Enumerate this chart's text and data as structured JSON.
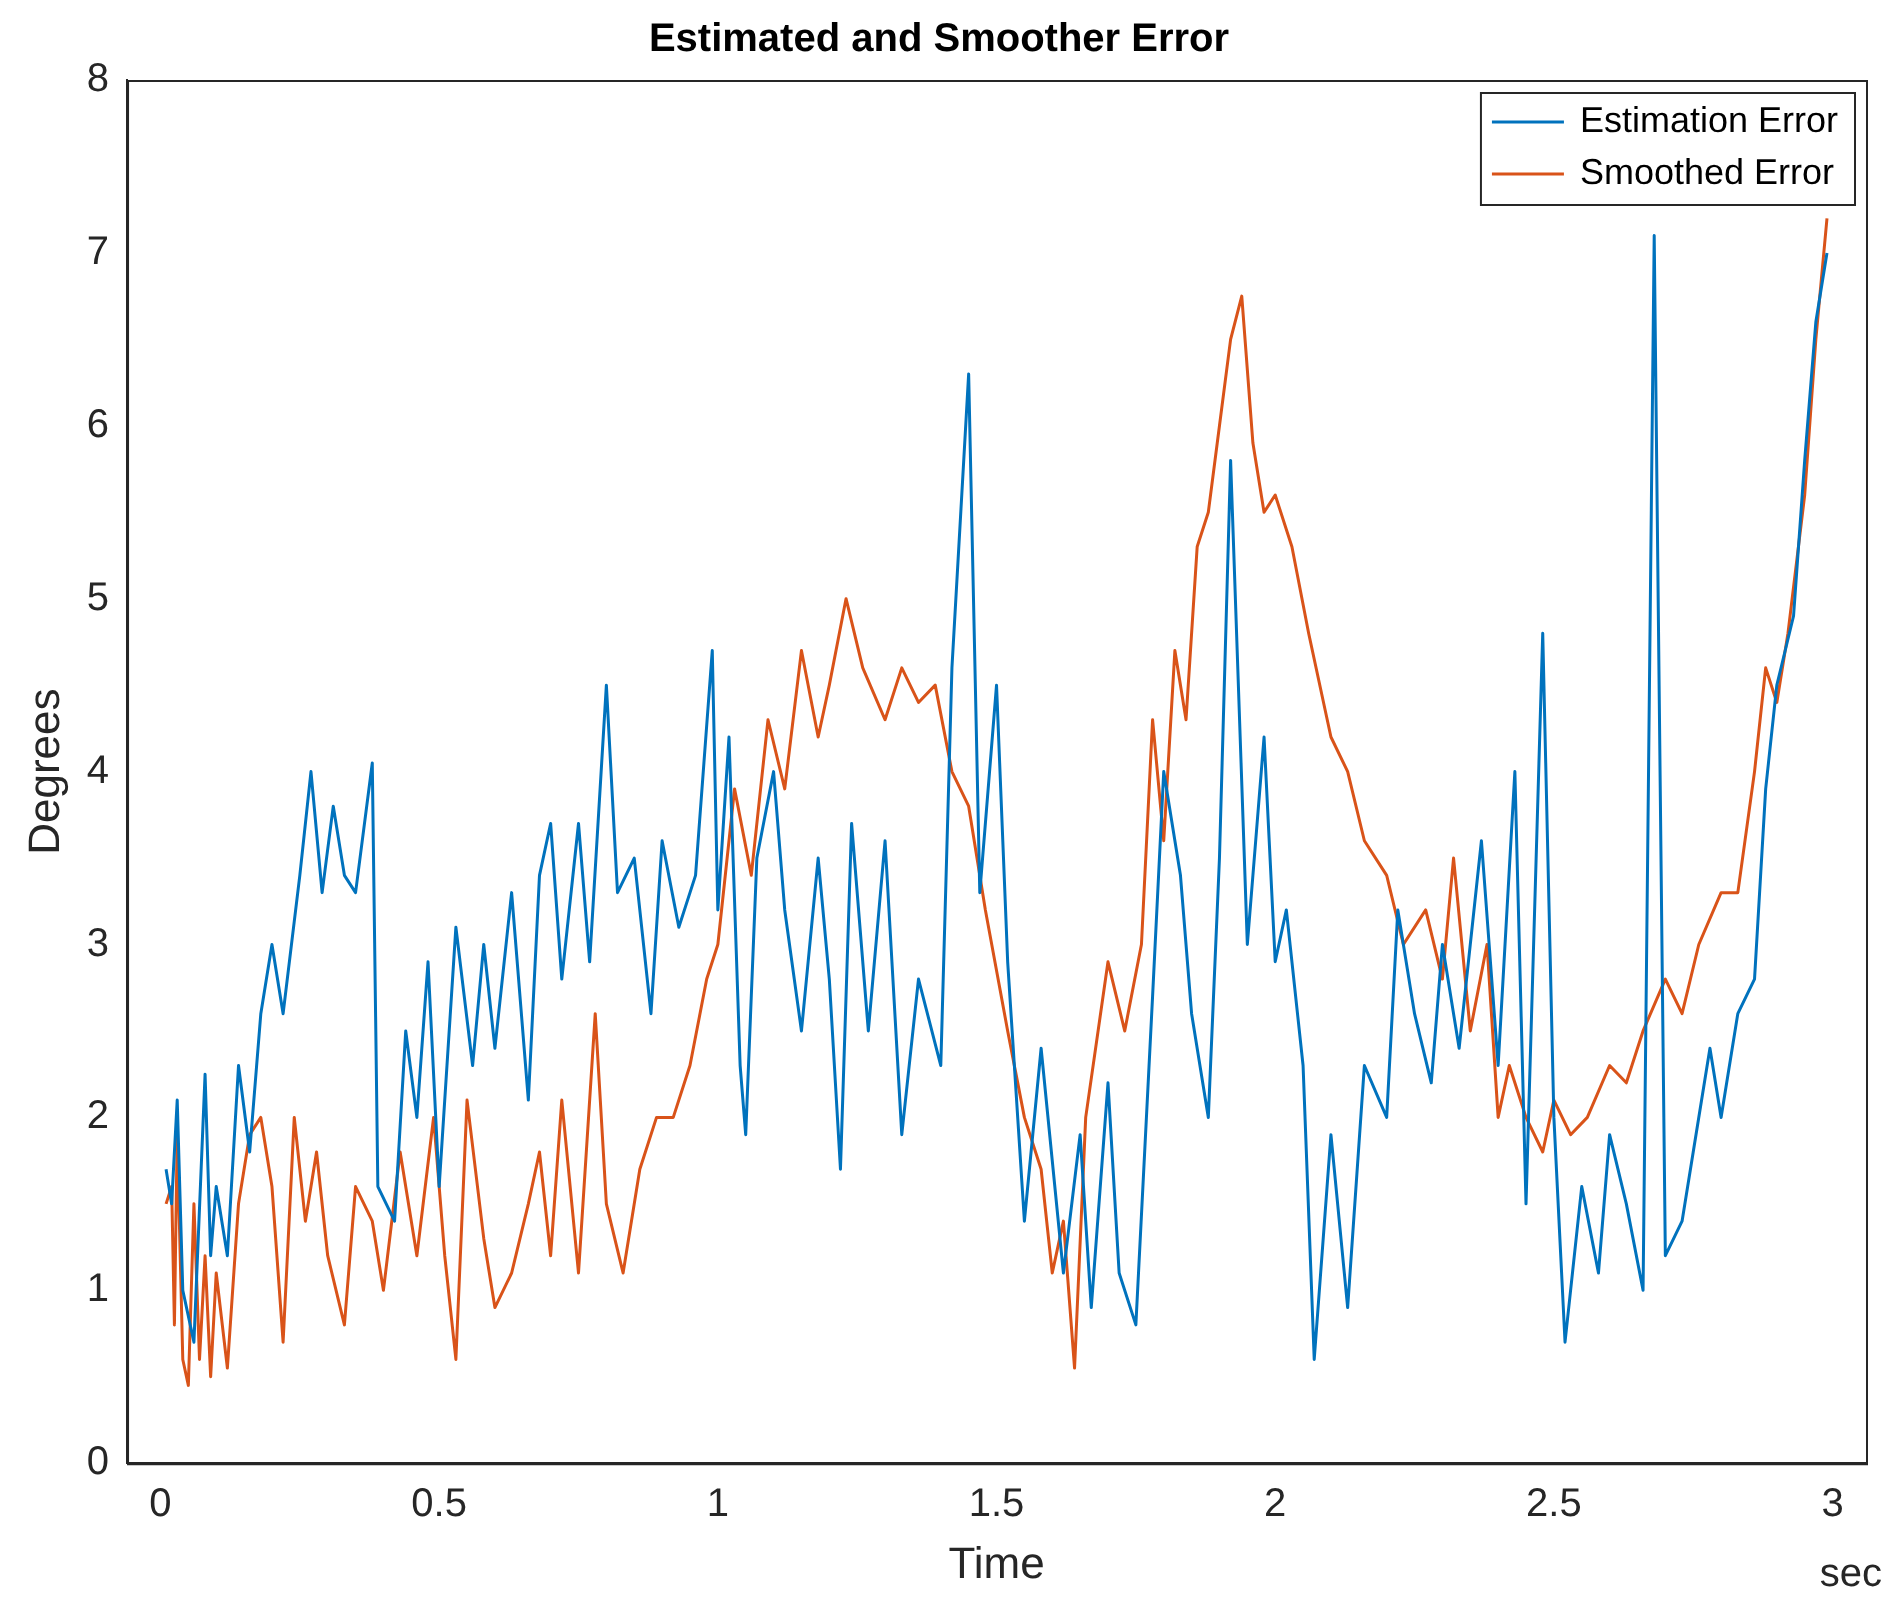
{
  "chart_data": {
    "type": "line",
    "title": "Estimated and Smoother Error",
    "xlabel": "Time",
    "ylabel": "Degrees",
    "annotations": [
      "sec"
    ],
    "xlim": [
      -0.06,
      3.06
    ],
    "ylim": [
      0,
      8
    ],
    "xticks": [
      0,
      0.5,
      1,
      1.5,
      2,
      2.5,
      3
    ],
    "yticks": [
      0,
      1,
      2,
      3,
      4,
      5,
      6,
      7,
      8
    ],
    "grid": false,
    "legend": "top right",
    "marker": "none",
    "line_style": "solid",
    "series": [
      {
        "name": "Estimation Error",
        "color": "#0072bd",
        "x": [
          0.01,
          0.02,
          0.03,
          0.04,
          0.06,
          0.08,
          0.09,
          0.1,
          0.12,
          0.14,
          0.16,
          0.18,
          0.2,
          0.22,
          0.25,
          0.27,
          0.29,
          0.31,
          0.33,
          0.35,
          0.38,
          0.39,
          0.42,
          0.44,
          0.46,
          0.48,
          0.5,
          0.53,
          0.56,
          0.58,
          0.6,
          0.63,
          0.66,
          0.68,
          0.7,
          0.72,
          0.75,
          0.77,
          0.8,
          0.82,
          0.85,
          0.88,
          0.9,
          0.93,
          0.96,
          0.99,
          1.0,
          1.02,
          1.04,
          1.05,
          1.07,
          1.1,
          1.12,
          1.15,
          1.18,
          1.2,
          1.22,
          1.24,
          1.27,
          1.3,
          1.33,
          1.36,
          1.4,
          1.42,
          1.45,
          1.47,
          1.5,
          1.52,
          1.55,
          1.58,
          1.62,
          1.65,
          1.67,
          1.7,
          1.72,
          1.75,
          1.78,
          1.8,
          1.83,
          1.85,
          1.88,
          1.9,
          1.92,
          1.95,
          1.98,
          2.0,
          2.02,
          2.05,
          2.07,
          2.1,
          2.13,
          2.16,
          2.2,
          2.22,
          2.25,
          2.28,
          2.3,
          2.33,
          2.37,
          2.4,
          2.43,
          2.45,
          2.48,
          2.5,
          2.52,
          2.55,
          2.58,
          2.6,
          2.63,
          2.66,
          2.68,
          2.7,
          2.73,
          2.75,
          2.78,
          2.8,
          2.83,
          2.86,
          2.88,
          2.9,
          2.93,
          2.95,
          2.97,
          2.99
        ],
        "values": [
          1.7,
          1.5,
          2.1,
          1.0,
          0.7,
          2.25,
          1.2,
          1.6,
          1.2,
          2.3,
          1.8,
          2.6,
          3.0,
          2.6,
          3.4,
          4.0,
          3.3,
          3.8,
          3.4,
          3.3,
          4.05,
          1.6,
          1.4,
          2.5,
          2.0,
          2.9,
          1.6,
          3.1,
          2.3,
          3.0,
          2.4,
          3.3,
          2.1,
          3.4,
          3.7,
          2.8,
          3.7,
          2.9,
          4.5,
          3.3,
          3.5,
          2.6,
          3.6,
          3.1,
          3.4,
          4.7,
          3.2,
          4.2,
          2.3,
          1.9,
          3.5,
          4.0,
          3.2,
          2.5,
          3.5,
          2.8,
          1.7,
          3.7,
          2.5,
          3.6,
          1.9,
          2.8,
          2.3,
          4.6,
          6.3,
          3.3,
          4.5,
          2.9,
          1.4,
          2.4,
          1.1,
          1.9,
          0.9,
          2.2,
          1.1,
          0.8,
          2.7,
          4.0,
          3.4,
          2.6,
          2.0,
          3.5,
          5.8,
          3.0,
          4.2,
          2.9,
          3.2,
          2.3,
          0.6,
          1.9,
          0.9,
          2.3,
          2.0,
          3.2,
          2.6,
          2.2,
          3.0,
          2.4,
          3.6,
          2.3,
          4.0,
          1.5,
          4.8,
          2.0,
          0.7,
          1.6,
          1.1,
          1.9,
          1.5,
          1.0,
          7.1,
          1.2,
          1.4,
          1.8,
          2.4,
          2.0,
          2.6,
          2.8,
          3.9,
          4.5,
          4.9,
          5.8,
          6.6,
          7.0
        ]
      },
      {
        "name": "Smoothed Error",
        "color": "#d95319",
        "x": [
          0.01,
          0.02,
          0.025,
          0.03,
          0.04,
          0.05,
          0.06,
          0.07,
          0.08,
          0.09,
          0.1,
          0.12,
          0.14,
          0.16,
          0.18,
          0.2,
          0.22,
          0.24,
          0.26,
          0.28,
          0.3,
          0.33,
          0.35,
          0.38,
          0.4,
          0.43,
          0.46,
          0.49,
          0.51,
          0.53,
          0.55,
          0.58,
          0.6,
          0.63,
          0.66,
          0.68,
          0.7,
          0.72,
          0.75,
          0.78,
          0.8,
          0.83,
          0.86,
          0.89,
          0.92,
          0.95,
          0.98,
          1.0,
          1.03,
          1.06,
          1.09,
          1.12,
          1.15,
          1.18,
          1.2,
          1.23,
          1.26,
          1.3,
          1.33,
          1.36,
          1.39,
          1.42,
          1.45,
          1.48,
          1.52,
          1.55,
          1.58,
          1.6,
          1.62,
          1.64,
          1.66,
          1.7,
          1.73,
          1.76,
          1.78,
          1.8,
          1.82,
          1.84,
          1.86,
          1.88,
          1.9,
          1.92,
          1.94,
          1.96,
          1.98,
          2.0,
          2.03,
          2.06,
          2.1,
          2.13,
          2.16,
          2.2,
          2.23,
          2.27,
          2.3,
          2.32,
          2.35,
          2.38,
          2.4,
          2.42,
          2.45,
          2.48,
          2.5,
          2.53,
          2.56,
          2.6,
          2.63,
          2.66,
          2.7,
          2.73,
          2.76,
          2.8,
          2.83,
          2.86,
          2.88,
          2.9,
          2.92,
          2.95,
          2.97,
          2.99
        ],
        "values": [
          1.5,
          1.6,
          0.8,
          1.9,
          0.6,
          0.45,
          1.5,
          0.6,
          1.2,
          0.5,
          1.1,
          0.55,
          1.5,
          1.9,
          2.0,
          1.6,
          0.7,
          2.0,
          1.4,
          1.8,
          1.2,
          0.8,
          1.6,
          1.4,
          1.0,
          1.8,
          1.2,
          2.0,
          1.2,
          0.6,
          2.1,
          1.3,
          0.9,
          1.1,
          1.5,
          1.8,
          1.2,
          2.1,
          1.1,
          2.6,
          1.5,
          1.1,
          1.7,
          2.0,
          2.0,
          2.3,
          2.8,
          3.0,
          3.9,
          3.4,
          4.3,
          3.9,
          4.7,
          4.2,
          4.5,
          5.0,
          4.6,
          4.3,
          4.6,
          4.4,
          4.5,
          4.0,
          3.8,
          3.2,
          2.5,
          2.0,
          1.7,
          1.1,
          1.4,
          0.55,
          2.0,
          2.9,
          2.5,
          3.0,
          4.3,
          3.6,
          4.7,
          4.3,
          5.3,
          5.5,
          6.0,
          6.5,
          6.75,
          5.9,
          5.5,
          5.6,
          5.3,
          4.8,
          4.2,
          4.0,
          3.6,
          3.4,
          3.0,
          3.2,
          2.8,
          3.5,
          2.5,
          3.0,
          2.0,
          2.3,
          2.0,
          1.8,
          2.1,
          1.9,
          2.0,
          2.3,
          2.2,
          2.5,
          2.8,
          2.6,
          3.0,
          3.3,
          3.3,
          4.0,
          4.6,
          4.4,
          4.8,
          5.6,
          6.5,
          7.2
        ]
      }
    ]
  }
}
